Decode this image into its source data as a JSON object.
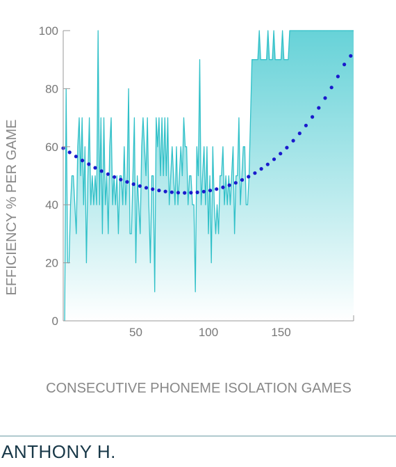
{
  "chart_data": {
    "type": "area",
    "title": "",
    "xlabel": "CONSECUTIVE PHONEME ISOLATION GAMES",
    "ylabel": "EFFICIENCY % PER GAME",
    "xlim": [
      0,
      200
    ],
    "ylim": [
      0,
      100
    ],
    "xticks": [
      50,
      100,
      150
    ],
    "yticks": [
      0,
      20,
      40,
      60,
      80,
      100
    ],
    "grid": false,
    "legend": "none",
    "colors": {
      "line": "#30c0c8",
      "fill_top": "#5fd0d6",
      "fill_bottom": "#ffffff",
      "trend": "#1a1acc",
      "axis": "#999999"
    },
    "series": [
      {
        "type": "area",
        "x": [
          1,
          2,
          3,
          4,
          5,
          6,
          7,
          8,
          9,
          10,
          11,
          12,
          13,
          14,
          15,
          16,
          17,
          18,
          19,
          20,
          21,
          22,
          23,
          24,
          25,
          26,
          27,
          28,
          29,
          30,
          31,
          32,
          33,
          34,
          35,
          36,
          37,
          38,
          39,
          40,
          41,
          42,
          43,
          44,
          45,
          46,
          47,
          48,
          49,
          50,
          51,
          52,
          53,
          54,
          55,
          56,
          57,
          58,
          59,
          60,
          61,
          62,
          63,
          64,
          65,
          66,
          67,
          68,
          69,
          70,
          71,
          72,
          73,
          74,
          75,
          76,
          77,
          78,
          79,
          80,
          81,
          82,
          83,
          84,
          85,
          86,
          87,
          88,
          89,
          90,
          91,
          92,
          93,
          94,
          95,
          96,
          97,
          98,
          99,
          100,
          101,
          102,
          103,
          104,
          105,
          106,
          107,
          108,
          109,
          110,
          111,
          112,
          113,
          114,
          115,
          116,
          117,
          118,
          119,
          120,
          121,
          122,
          123,
          124,
          125,
          126,
          127,
          128,
          129,
          130,
          131,
          132,
          133,
          134,
          135,
          136,
          137,
          138,
          139,
          140,
          141,
          142,
          143,
          144,
          145,
          146,
          147,
          148,
          149,
          150,
          151,
          152,
          153,
          154,
          155,
          156,
          157,
          158,
          159,
          160,
          161,
          162,
          163,
          164,
          165,
          166,
          167,
          168,
          169,
          170,
          171,
          172,
          173,
          174,
          175,
          176,
          177,
          178,
          179,
          180,
          181,
          182,
          183,
          184,
          185,
          186,
          187,
          188,
          189,
          190,
          191,
          192,
          193,
          194,
          195,
          196,
          197,
          198,
          199,
          200
        ],
        "values": [
          0,
          80,
          20,
          20,
          40,
          50,
          50,
          40,
          30,
          60,
          70,
          50,
          70,
          40,
          60,
          20,
          50,
          70,
          40,
          50,
          40,
          50,
          40,
          100,
          40,
          70,
          30,
          70,
          40,
          50,
          30,
          60,
          70,
          40,
          50,
          40,
          50,
          30,
          50,
          50,
          40,
          60,
          40,
          50,
          80,
          30,
          30,
          50,
          70,
          20,
          50,
          40,
          30,
          60,
          70,
          60,
          50,
          70,
          40,
          20,
          50,
          50,
          10,
          70,
          60,
          70,
          50,
          70,
          50,
          70,
          50,
          70,
          40,
          50,
          60,
          50,
          40,
          60,
          40,
          50,
          60,
          50,
          70,
          60,
          60,
          40,
          50,
          50,
          40,
          40,
          10,
          60,
          50,
          90,
          40,
          50,
          60,
          40,
          60,
          30,
          50,
          20,
          60,
          40,
          30,
          40,
          30,
          50,
          50,
          60,
          40,
          50,
          40,
          50,
          40,
          50,
          60,
          30,
          50,
          50,
          70,
          40,
          50,
          60,
          60,
          40,
          40,
          50,
          70,
          90,
          90,
          90,
          90,
          90,
          100,
          90,
          90,
          90,
          90,
          90,
          100,
          90,
          90,
          90,
          100,
          90,
          90,
          90,
          90,
          90,
          100,
          90,
          90,
          90,
          90,
          100,
          100,
          100,
          100,
          100,
          100,
          100,
          100,
          100,
          100,
          100,
          100,
          100,
          100,
          100,
          100,
          100,
          100,
          100,
          100,
          100,
          100,
          100,
          100,
          100,
          100,
          100,
          100,
          100,
          100,
          100,
          100,
          100,
          100,
          100,
          100,
          100,
          100,
          100,
          100,
          100,
          100,
          100,
          100,
          100
        ]
      },
      {
        "type": "trend",
        "style": "dotted",
        "x": [
          0,
          7,
          14,
          21,
          28,
          35,
          42,
          49,
          56,
          63,
          70,
          77,
          84,
          91,
          98,
          105,
          112,
          119,
          126,
          133,
          140,
          147,
          154,
          161,
          168,
          175,
          182,
          189,
          196,
          200
        ],
        "values": [
          59.5,
          57.2,
          55.0,
          53.0,
          51.2,
          49.6,
          48.2,
          47.0,
          46.0,
          45.2,
          44.6,
          44.2,
          44.1,
          44.2,
          44.6,
          45.3,
          46.3,
          47.6,
          49.2,
          51.2,
          53.6,
          56.4,
          59.7,
          63.5,
          67.8,
          72.6,
          78.0,
          84.0,
          90.6,
          92.0
        ]
      }
    ]
  },
  "student": {
    "name": "ANTHONY H."
  }
}
